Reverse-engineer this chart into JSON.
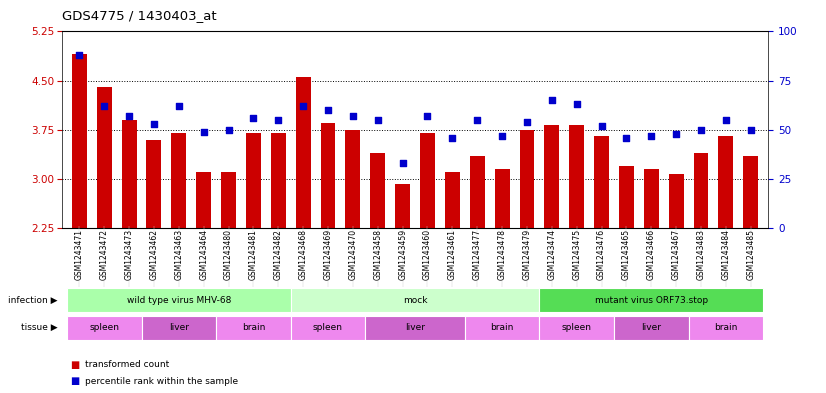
{
  "title": "GDS4775 / 1430403_at",
  "samples": [
    "GSM1243471",
    "GSM1243472",
    "GSM1243473",
    "GSM1243462",
    "GSM1243463",
    "GSM1243464",
    "GSM1243480",
    "GSM1243481",
    "GSM1243482",
    "GSM1243468",
    "GSM1243469",
    "GSM1243470",
    "GSM1243458",
    "GSM1243459",
    "GSM1243460",
    "GSM1243461",
    "GSM1243477",
    "GSM1243478",
    "GSM1243479",
    "GSM1243474",
    "GSM1243475",
    "GSM1243476",
    "GSM1243465",
    "GSM1243466",
    "GSM1243467",
    "GSM1243483",
    "GSM1243484",
    "GSM1243485"
  ],
  "bar_values": [
    4.9,
    4.4,
    3.9,
    3.6,
    3.7,
    3.1,
    3.1,
    3.7,
    3.7,
    4.55,
    3.85,
    3.75,
    3.4,
    2.92,
    3.7,
    3.1,
    3.35,
    3.15,
    3.75,
    3.82,
    3.82,
    3.65,
    3.2,
    3.15,
    3.08,
    3.4,
    3.65,
    3.35
  ],
  "percentile_values": [
    88,
    62,
    57,
    53,
    62,
    49,
    50,
    56,
    55,
    62,
    60,
    57,
    55,
    33,
    57,
    46,
    55,
    47,
    54,
    65,
    63,
    52,
    46,
    47,
    48,
    50,
    55,
    50
  ],
  "bar_color": "#cc0000",
  "percentile_color": "#0000cc",
  "ylim_left": [
    2.25,
    5.25
  ],
  "ylim_right": [
    0,
    100
  ],
  "yticks_left": [
    2.25,
    3.0,
    3.75,
    4.5,
    5.25
  ],
  "yticks_right": [
    0,
    25,
    50,
    75,
    100
  ],
  "infection_groups": [
    {
      "label": "wild type virus MHV-68",
      "start": 0,
      "end": 9,
      "color": "#aaffaa"
    },
    {
      "label": "mock",
      "start": 9,
      "end": 19,
      "color": "#ccffcc"
    },
    {
      "label": "mutant virus ORF73.stop",
      "start": 19,
      "end": 28,
      "color": "#55dd55"
    }
  ],
  "tissue_groups": [
    {
      "label": "spleen",
      "start": 0,
      "end": 3,
      "color": "#ee88ee"
    },
    {
      "label": "liver",
      "start": 3,
      "end": 6,
      "color": "#cc66cc"
    },
    {
      "label": "brain",
      "start": 6,
      "end": 9,
      "color": "#ee88ee"
    },
    {
      "label": "spleen",
      "start": 9,
      "end": 12,
      "color": "#ee88ee"
    },
    {
      "label": "liver",
      "start": 12,
      "end": 16,
      "color": "#cc66cc"
    },
    {
      "label": "brain",
      "start": 16,
      "end": 19,
      "color": "#ee88ee"
    },
    {
      "label": "spleen",
      "start": 19,
      "end": 22,
      "color": "#ee88ee"
    },
    {
      "label": "liver",
      "start": 22,
      "end": 25,
      "color": "#cc66cc"
    },
    {
      "label": "brain",
      "start": 25,
      "end": 28,
      "color": "#ee88ee"
    }
  ],
  "infection_label": "infection",
  "tissue_label": "tissue",
  "legend_bar": "transformed count",
  "legend_pct": "percentile rank within the sample",
  "bar_width": 0.6
}
